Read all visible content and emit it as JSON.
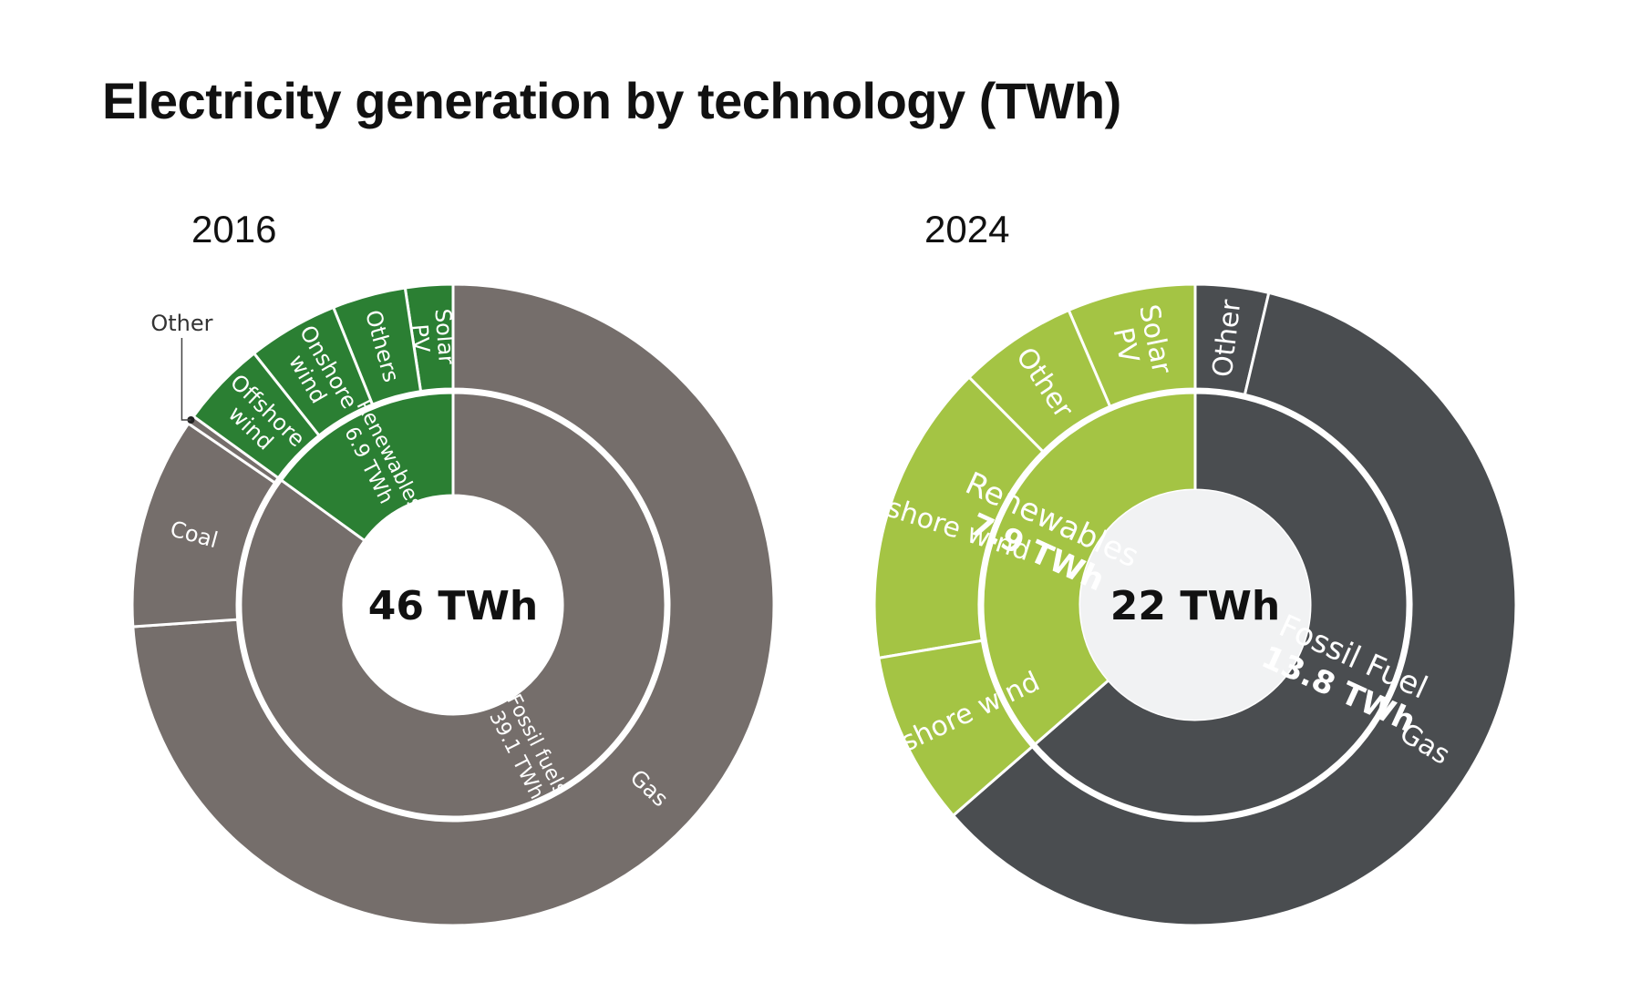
{
  "title": "Electricity generation by technology (TWh)",
  "charts": [
    {
      "year": "2016",
      "total_label": "46 TWh",
      "colors": {
        "fossil": "#756e6b",
        "renewable": "#2b7f33",
        "text": "#ffffff",
        "center": "#ffffff"
      },
      "inner_segments": [
        {
          "name": "Fossil fuels",
          "value_label": "39.1 TWh",
          "value": 39.1,
          "group": "fossil"
        },
        {
          "name": "Renewables",
          "value_label": "6.9 TWh",
          "value": 6.9,
          "group": "renewable"
        }
      ],
      "outer_segments": [
        {
          "name": "Gas",
          "value": 34.0,
          "group": "fossil"
        },
        {
          "name": "Coal",
          "value": 4.9,
          "group": "fossil"
        },
        {
          "name": "Other",
          "value": 0.2,
          "group": "fossil",
          "callout": true
        },
        {
          "name": "Offshore wind",
          "value": 2.0,
          "group": "renewable"
        },
        {
          "name": "Onshore wind",
          "value": 2.1,
          "group": "renewable"
        },
        {
          "name": "Others",
          "value": 1.7,
          "group": "renewable"
        },
        {
          "name": "Solar PV",
          "value": 1.1,
          "group": "renewable"
        }
      ]
    },
    {
      "year": "2024",
      "total_label": "22 TWh",
      "colors": {
        "fossil": "#4a4d50",
        "renewable": "#a4c444",
        "text": "#ffffff",
        "center": "#f1f2f3"
      },
      "inner_segments": [
        {
          "name": "Fossil Fuel",
          "value_label": "13.8 TWh",
          "value": 13.8,
          "group": "fossil"
        },
        {
          "name": "Renewables",
          "value_label": "7.9 TWh",
          "value": 7.9,
          "group": "renewable"
        }
      ],
      "outer_segments": [
        {
          "name": "Other",
          "value": 0.8,
          "group": "fossil"
        },
        {
          "name": "Gas",
          "value": 13.0,
          "group": "fossil"
        },
        {
          "name": "Onshore wind",
          "value": 1.9,
          "group": "renewable"
        },
        {
          "name": "Offshore wind",
          "value": 3.3,
          "group": "renewable"
        },
        {
          "name": "Other",
          "value": 1.3,
          "group": "renewable"
        },
        {
          "name": "Solar PV",
          "value": 1.4,
          "group": "renewable"
        }
      ]
    }
  ],
  "chart_data": [
    {
      "type": "pie",
      "title": "Electricity generation by technology (TWh)",
      "subtitle": "2016",
      "center_label": "46 TWh",
      "inner_ring": {
        "categories": [
          "Fossil fuels",
          "Renewables"
        ],
        "values": [
          39.1,
          6.9
        ]
      },
      "outer_ring": {
        "categories": [
          "Gas",
          "Coal",
          "Other",
          "Offshore wind",
          "Onshore wind",
          "Others",
          "Solar PV"
        ],
        "values": [
          34.0,
          4.9,
          0.2,
          2.0,
          2.1,
          1.7,
          1.1
        ]
      }
    },
    {
      "type": "pie",
      "title": "Electricity generation by technology (TWh)",
      "subtitle": "2024",
      "center_label": "22 TWh",
      "inner_ring": {
        "categories": [
          "Fossil Fuel",
          "Renewables"
        ],
        "values": [
          13.8,
          7.9
        ]
      },
      "outer_ring": {
        "categories": [
          "Other",
          "Gas",
          "Onshore wind",
          "Offshore wind",
          "Other",
          "Solar PV"
        ],
        "values": [
          0.8,
          13.0,
          1.9,
          3.3,
          1.3,
          1.4
        ]
      }
    }
  ]
}
